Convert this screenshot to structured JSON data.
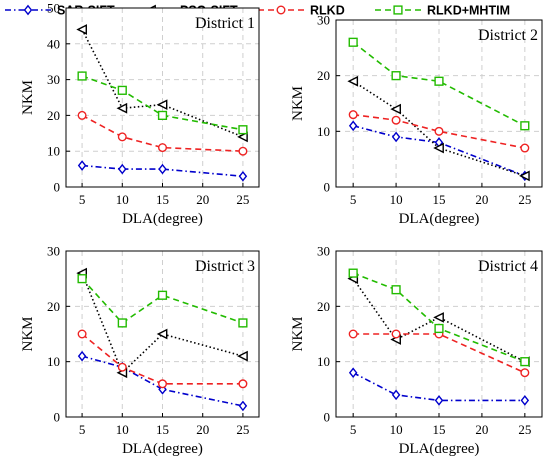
{
  "legend": [
    {
      "name": "SAR-SIFT",
      "color": "#0000cc",
      "dash": "dashdot",
      "marker": "diamond"
    },
    {
      "name": "PSO-SIFT",
      "color": "#000000",
      "dash": "dotted",
      "marker": "triangle-left"
    },
    {
      "name": "RLKD",
      "color": "#ee2222",
      "dash": "dashed",
      "marker": "circle"
    },
    {
      "name": "RLKD+MHTIM",
      "color": "#22bb00",
      "dash": "dashed",
      "marker": "square"
    }
  ],
  "chart_data": [
    {
      "type": "line",
      "title": "District 1",
      "xlabel": "DLA(degree)",
      "ylabel": "NKM",
      "x": [
        5,
        10,
        15,
        25
      ],
      "xticks": [
        5,
        10,
        15,
        20,
        25
      ],
      "xlim": [
        3,
        27
      ],
      "ylim": [
        0,
        50
      ],
      "yticks": [
        0,
        10,
        20,
        30,
        40,
        50
      ],
      "grid": true,
      "series": [
        {
          "name": "SAR-SIFT",
          "values": [
            6,
            5,
            5,
            3
          ]
        },
        {
          "name": "PSO-SIFT",
          "values": [
            44,
            22,
            23,
            14
          ]
        },
        {
          "name": "RLKD",
          "values": [
            20,
            14,
            11,
            10
          ]
        },
        {
          "name": "RLKD+MHTIM",
          "values": [
            31,
            27,
            20,
            16
          ]
        }
      ]
    },
    {
      "type": "line",
      "title": "District 2",
      "xlabel": "DLA(degree)",
      "ylabel": "NKM",
      "x": [
        5,
        10,
        15,
        25
      ],
      "xticks": [
        5,
        10,
        15,
        20,
        25
      ],
      "xlim": [
        3,
        27
      ],
      "ylim": [
        0,
        30
      ],
      "yticks": [
        0,
        10,
        20,
        30
      ],
      "grid": true,
      "series": [
        {
          "name": "SAR-SIFT",
          "values": [
            11,
            9,
            8,
            2
          ]
        },
        {
          "name": "PSO-SIFT",
          "values": [
            19,
            14,
            7,
            2
          ]
        },
        {
          "name": "RLKD",
          "values": [
            13,
            12,
            10,
            7
          ]
        },
        {
          "name": "RLKD+MHTIM",
          "values": [
            26,
            20,
            19,
            11
          ]
        }
      ]
    },
    {
      "type": "line",
      "title": "District 3",
      "xlabel": "DLA(degree)",
      "ylabel": "NKM",
      "x": [
        5,
        10,
        15,
        25
      ],
      "xticks": [
        5,
        10,
        15,
        20,
        25
      ],
      "xlim": [
        3,
        27
      ],
      "ylim": [
        0,
        30
      ],
      "yticks": [
        0,
        10,
        20,
        30
      ],
      "grid": true,
      "series": [
        {
          "name": "SAR-SIFT",
          "values": [
            11,
            9,
            5,
            2
          ]
        },
        {
          "name": "PSO-SIFT",
          "values": [
            26,
            8,
            15,
            11
          ]
        },
        {
          "name": "RLKD",
          "values": [
            15,
            9,
            6,
            6
          ]
        },
        {
          "name": "RLKD+MHTIM",
          "values": [
            25,
            17,
            22,
            17
          ]
        }
      ]
    },
    {
      "type": "line",
      "title": "District 4",
      "xlabel": "DLA(degree)",
      "ylabel": "NKM",
      "x": [
        5,
        10,
        15,
        25
      ],
      "xticks": [
        5,
        10,
        15,
        20,
        25
      ],
      "xlim": [
        3,
        27
      ],
      "ylim": [
        0,
        30
      ],
      "yticks": [
        0,
        10,
        20,
        30
      ],
      "grid": true,
      "series": [
        {
          "name": "SAR-SIFT",
          "values": [
            8,
            4,
            3,
            3
          ]
        },
        {
          "name": "PSO-SIFT",
          "values": [
            25,
            14,
            18,
            10
          ]
        },
        {
          "name": "RLKD",
          "values": [
            15,
            15,
            15,
            8
          ]
        },
        {
          "name": "RLKD+MHTIM",
          "values": [
            26,
            23,
            16,
            10
          ]
        }
      ]
    }
  ]
}
